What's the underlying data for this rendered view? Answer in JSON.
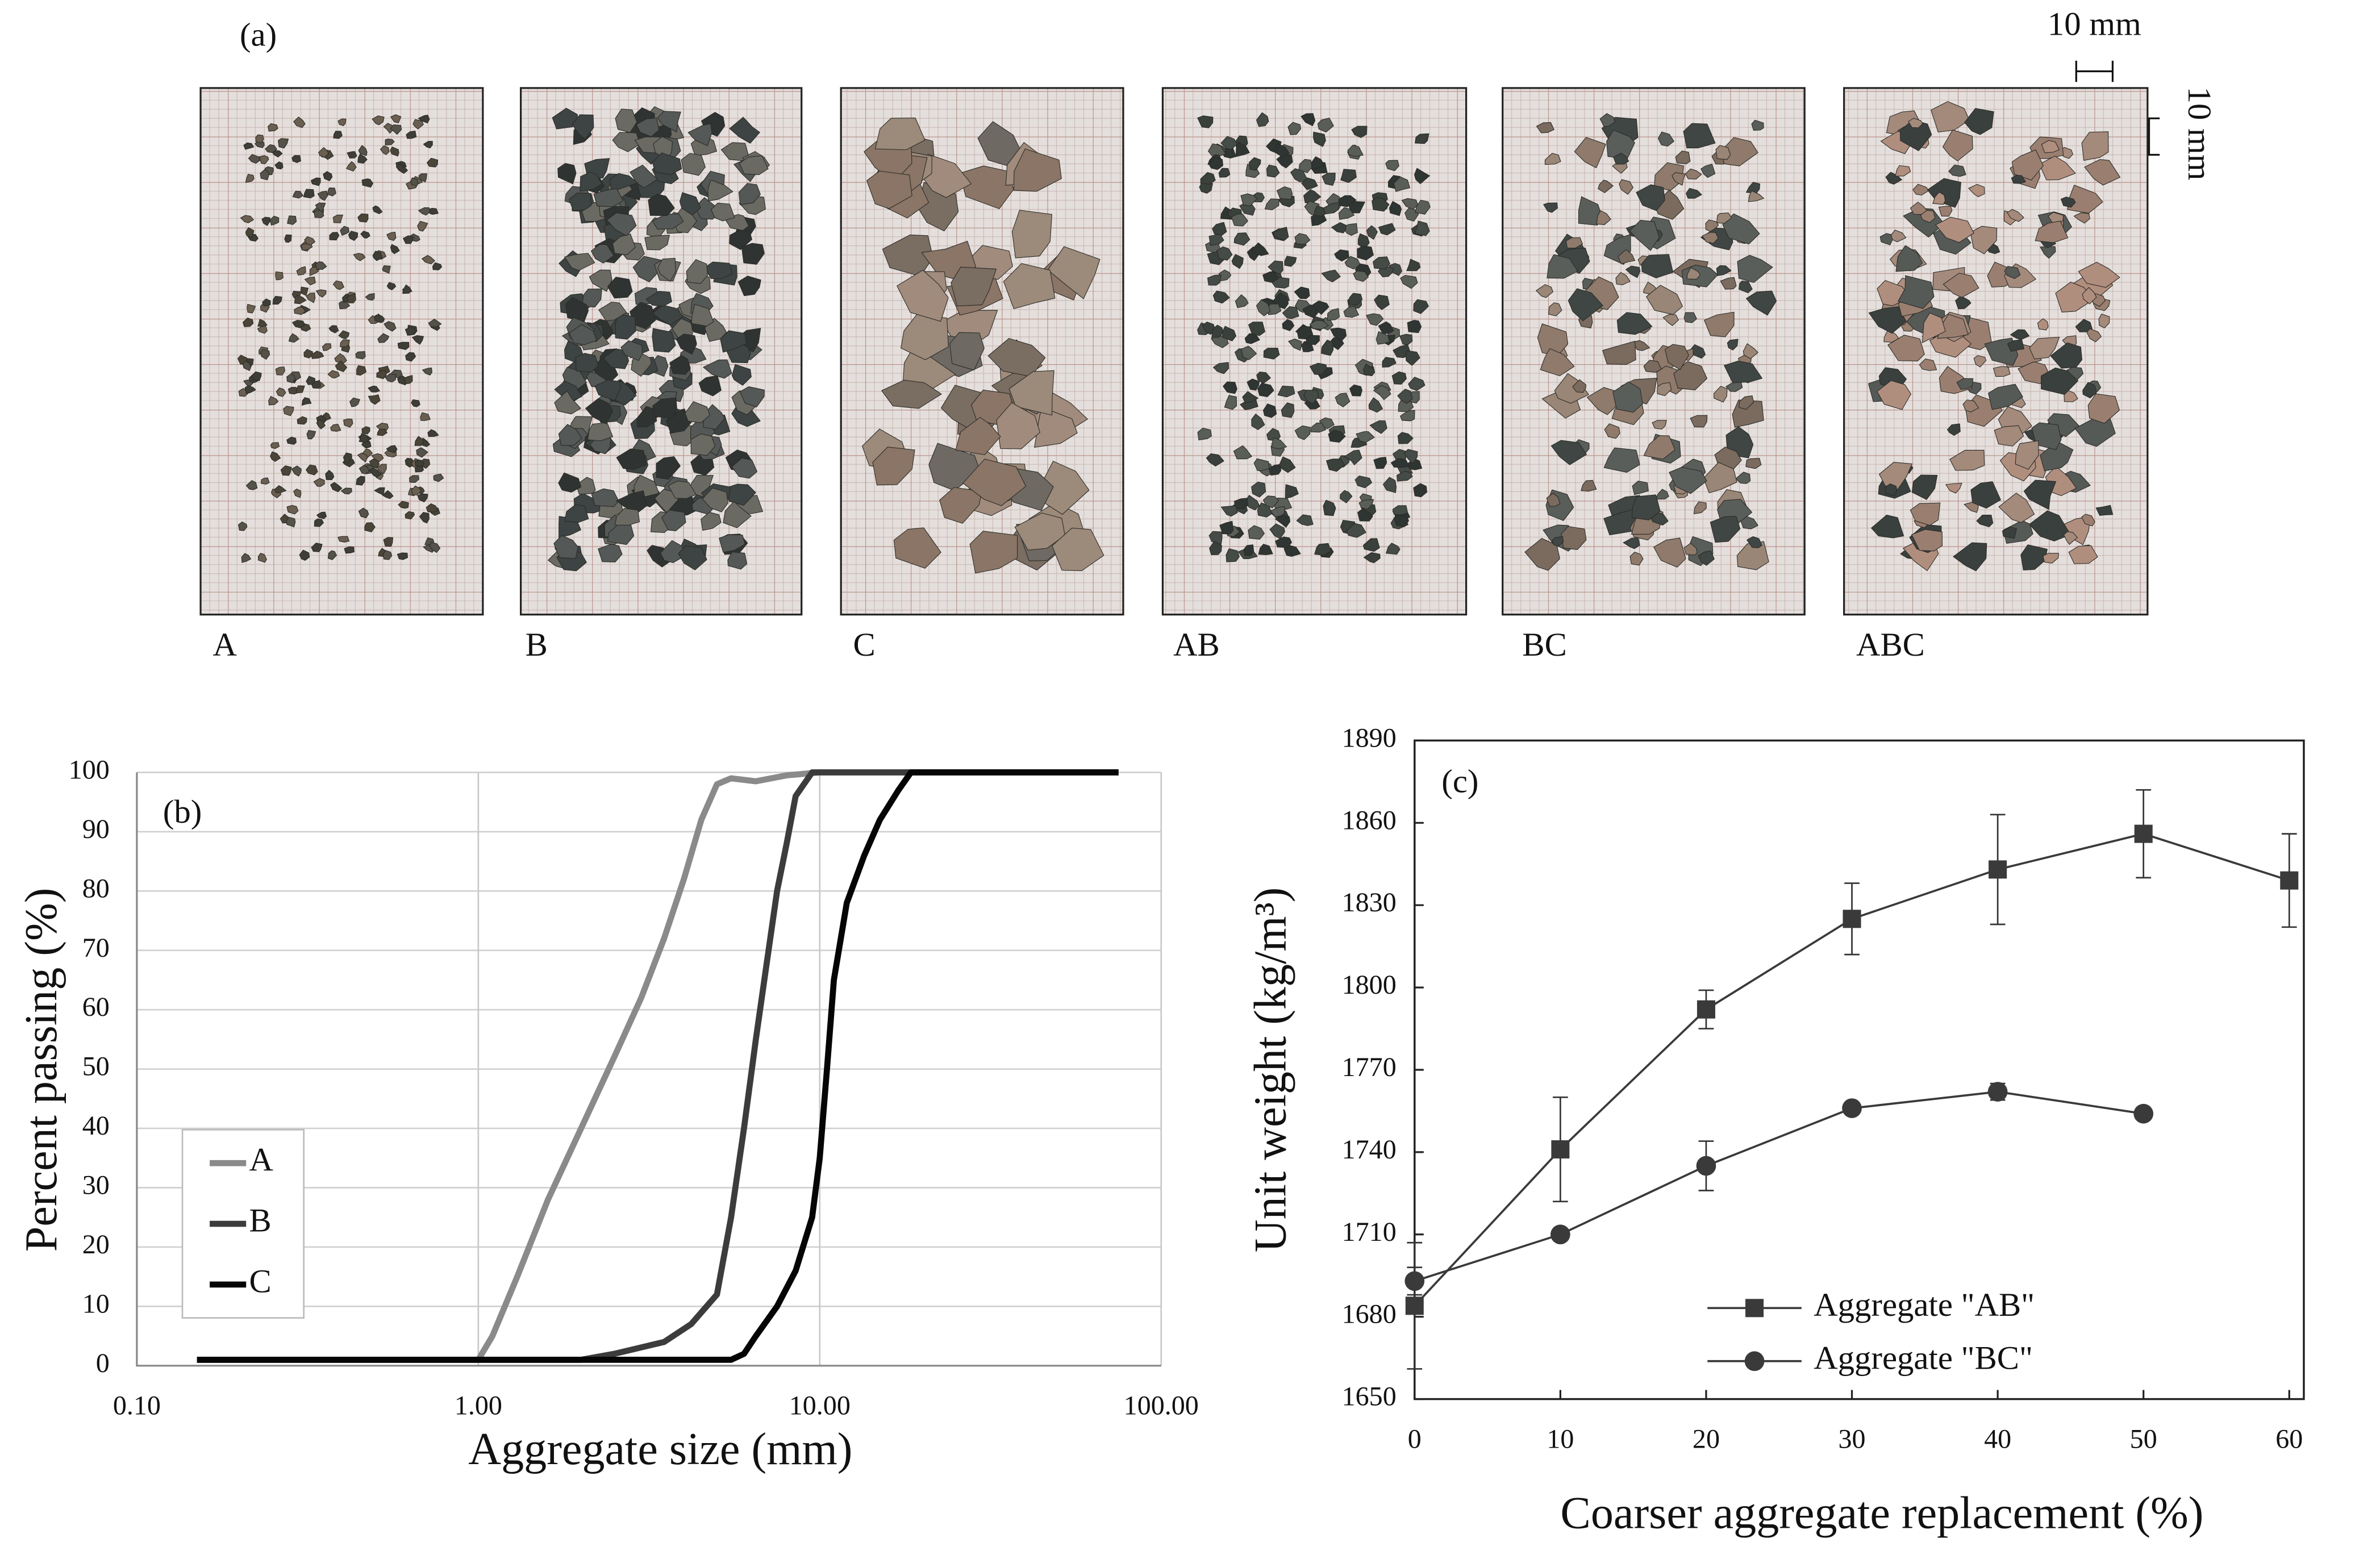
{
  "photo_panel": {
    "label": "(a)",
    "samples": [
      "A",
      "B",
      "C",
      "AB",
      "BC",
      "ABC"
    ],
    "scale_labels": [
      "10 mm",
      "10 mm"
    ]
  },
  "chart_data": [
    {
      "type": "line",
      "panel_label": "(b)",
      "x_label": "Aggregate size (mm)",
      "y_label": "Percent passing (%)",
      "xscale": "log",
      "xlim": [
        0.1,
        100
      ],
      "xticks": [
        {
          "value": 0.1,
          "label": "0.10"
        },
        {
          "value": 1,
          "label": "1.00"
        },
        {
          "value": 10,
          "label": "10.00"
        },
        {
          "value": 100,
          "label": "100.00"
        }
      ],
      "ylim": [
        0,
        100
      ],
      "yticks": [
        0,
        10,
        20,
        30,
        40,
        50,
        60,
        70,
        80,
        90,
        100
      ],
      "grid": true,
      "legend": "center-left",
      "series": [
        {
          "name": "A",
          "color": "#8a8a8a",
          "x": [
            0.15,
            1.0,
            1.1,
            1.3,
            1.6,
            2.0,
            2.5,
            3.0,
            3.5,
            4.0,
            4.5,
            5.0,
            5.5,
            6.5,
            8,
            10,
            20,
            75
          ],
          "values": [
            1,
            1,
            5,
            15,
            28,
            40,
            52,
            62,
            72,
            82,
            92,
            98,
            99,
            98.5,
            99.5,
            100,
            100,
            100
          ]
        },
        {
          "name": "B",
          "color": "#3c3c3c",
          "x": [
            0.15,
            2.0,
            2.5,
            3.5,
            4.2,
            5.0,
            5.5,
            6.0,
            6.5,
            7.0,
            7.5,
            8.0,
            8.5,
            9.5,
            75
          ],
          "values": [
            1,
            1,
            2,
            4,
            7,
            12,
            25,
            40,
            55,
            68,
            80,
            88,
            96,
            100,
            100
          ]
        },
        {
          "name": "C",
          "color": "#050505",
          "x": [
            0.15,
            5.5,
            6.0,
            6.5,
            7.5,
            8.5,
            9.5,
            10.0,
            10.5,
            11.0,
            12.0,
            13.5,
            15,
            17,
            18.5,
            75
          ],
          "values": [
            1,
            1,
            2,
            5,
            10,
            16,
            25,
            35,
            50,
            65,
            78,
            86,
            92,
            97,
            100,
            100
          ]
        }
      ]
    },
    {
      "type": "line",
      "panel_label": "(c)",
      "x_label": "Coarser aggregate replacement (%)",
      "y_label": "Unit weight (kg/m³)",
      "xlim": [
        0,
        61
      ],
      "xticks": [
        0,
        10,
        20,
        30,
        40,
        50,
        60
      ],
      "ylim": [
        1650,
        1890
      ],
      "yticks": [
        1650,
        1680,
        1710,
        1740,
        1770,
        1800,
        1830,
        1860,
        1890
      ],
      "grid": false,
      "legend": "lower-center",
      "series": [
        {
          "name": "Aggregate \"AB\"",
          "color": "#3a3a3a",
          "marker": "square",
          "x": [
            0,
            10,
            20,
            30,
            40,
            50,
            60
          ],
          "values": [
            1684,
            1741,
            1792,
            1825,
            1843,
            1856,
            1839
          ],
          "errors": [
            23,
            19,
            7,
            13,
            20,
            16,
            17
          ]
        },
        {
          "name": "Aggregate \"BC\"",
          "color": "#3a3a3a",
          "marker": "circle",
          "x": [
            0,
            10,
            20,
            30,
            40,
            50
          ],
          "values": [
            1693,
            1710,
            1735,
            1756,
            1762,
            1754
          ],
          "errors": [
            5,
            0,
            9,
            0,
            3,
            0
          ]
        }
      ]
    }
  ]
}
